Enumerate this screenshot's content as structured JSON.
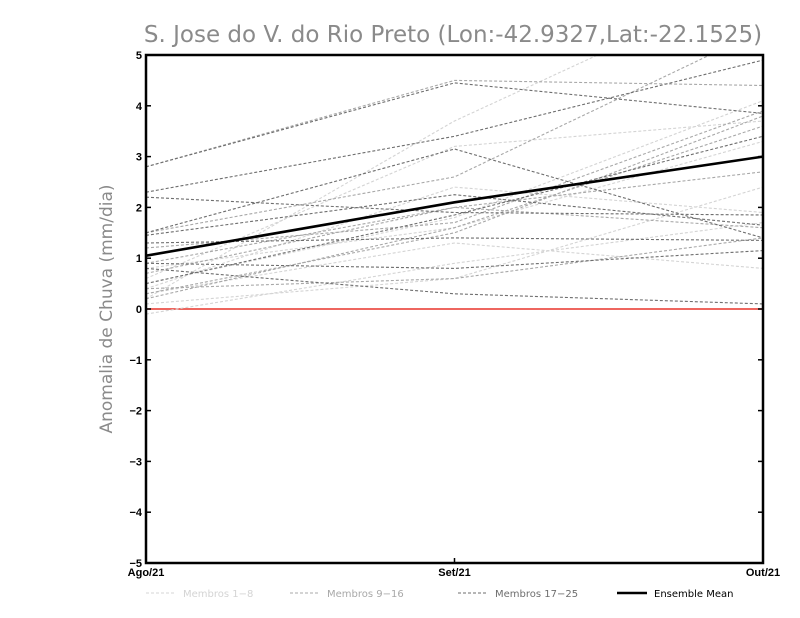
{
  "chart_data": {
    "type": "line",
    "title": "S. Jose do V. do Rio Preto (Lon:-42.9327,Lat:-22.1525)",
    "ylabel": "Anomalia de Chuva (mm/dia)",
    "xlabel": "",
    "categories": [
      "Ago/21",
      "Set/21",
      "Out/21"
    ],
    "ylim": [
      -5,
      5
    ],
    "yticks": [
      -5,
      -4,
      -3,
      -2,
      -1,
      0,
      1,
      2,
      3,
      4,
      5
    ],
    "grid": false,
    "legend_position": "bottom",
    "zero_line_color": "#e8342a",
    "legend": [
      {
        "label": "Membros 1-8",
        "color": "#d4d4d4",
        "style": "dashed"
      },
      {
        "label": "Membros 9-16",
        "color": "#a8a8a8",
        "style": "dashed"
      },
      {
        "label": "Membros 17-25",
        "color": "#6e6e6e",
        "style": "dashed"
      },
      {
        "label": "Ensemble Mean",
        "color": "#000000",
        "style": "solid"
      }
    ],
    "groups": [
      {
        "group": "Membros 1-8",
        "color": "#d4d4d4",
        "series": [
          [
            -0.1,
            0.9,
            1.7
          ],
          [
            0.2,
            3.7,
            6.5
          ],
          [
            0.5,
            1.8,
            4.1
          ],
          [
            0.3,
            1.3,
            0.8
          ],
          [
            0.8,
            1.6,
            3.3
          ],
          [
            0.1,
            0.6,
            2.4
          ],
          [
            0.4,
            2.4,
            1.9
          ],
          [
            0.6,
            3.2,
            3.7
          ]
        ]
      },
      {
        "group": "Membros 9-16",
        "color": "#a8a8a8",
        "series": [
          [
            2.8,
            4.5,
            4.4
          ],
          [
            0.2,
            1.6,
            3.6
          ],
          [
            1.5,
            2.6,
            5.5
          ],
          [
            0.9,
            2.0,
            1.6
          ],
          [
            0.4,
            0.6,
            1.4
          ],
          [
            1.2,
            1.7,
            3.9
          ],
          [
            0.3,
            1.5,
            3.8
          ],
          [
            0.7,
            2.0,
            2.7
          ]
        ]
      },
      {
        "group": "Membros 17-25",
        "color": "#6e6e6e",
        "series": [
          [
            2.8,
            4.45,
            3.85
          ],
          [
            2.3,
            3.4,
            4.9
          ],
          [
            1.5,
            3.15,
            1.4
          ],
          [
            1.45,
            2.25,
            1.65
          ],
          [
            2.2,
            1.9,
            1.85
          ],
          [
            0.9,
            0.8,
            1.15
          ],
          [
            1.3,
            1.4,
            1.35
          ],
          [
            0.5,
            1.85,
            3.4
          ],
          [
            0.8,
            0.3,
            0.1
          ]
        ]
      }
    ],
    "series": [
      {
        "name": "Ensemble Mean",
        "values": [
          1.05,
          2.1,
          3.0
        ]
      }
    ]
  }
}
